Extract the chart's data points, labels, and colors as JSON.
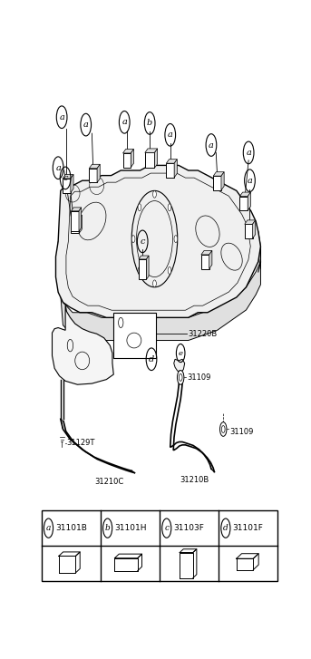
{
  "bg_color": "#ffffff",
  "line_color": "#000000",
  "legend_items": [
    {
      "label": "a",
      "code": "31101B"
    },
    {
      "label": "b",
      "code": "31101H"
    },
    {
      "label": "c",
      "code": "31103F"
    },
    {
      "label": "d",
      "code": "31101F"
    }
  ],
  "tank_outline_x": [
    0.08,
    0.07,
    0.07,
    0.08,
    0.1,
    0.13,
    0.17,
    0.22,
    0.28,
    0.34,
    0.4,
    0.46,
    0.5,
    0.54,
    0.58,
    0.62,
    0.66,
    0.7,
    0.74,
    0.78,
    0.82,
    0.86,
    0.89,
    0.91,
    0.92,
    0.91,
    0.9,
    0.88,
    0.85,
    0.82,
    0.78,
    0.74,
    0.7,
    0.66,
    0.62,
    0.58,
    0.54,
    0.5,
    0.46,
    0.42,
    0.38,
    0.34,
    0.3,
    0.26,
    0.22,
    0.18,
    0.14,
    0.11,
    0.09,
    0.08
  ],
  "tank_outline_y": [
    0.68,
    0.65,
    0.61,
    0.58,
    0.56,
    0.55,
    0.54,
    0.54,
    0.53,
    0.53,
    0.53,
    0.53,
    0.53,
    0.53,
    0.53,
    0.53,
    0.54,
    0.54,
    0.55,
    0.56,
    0.57,
    0.59,
    0.62,
    0.64,
    0.67,
    0.7,
    0.72,
    0.74,
    0.76,
    0.78,
    0.79,
    0.8,
    0.81,
    0.82,
    0.82,
    0.83,
    0.83,
    0.83,
    0.83,
    0.82,
    0.82,
    0.82,
    0.81,
    0.81,
    0.8,
    0.8,
    0.79,
    0.79,
    0.78,
    0.68
  ]
}
